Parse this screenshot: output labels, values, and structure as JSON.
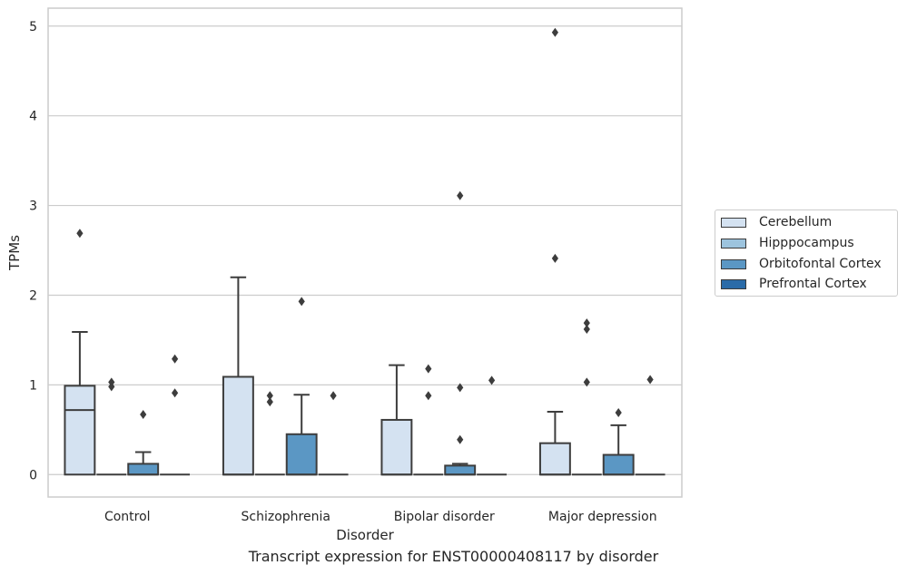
{
  "caption": "Transcript expression for ENST00000408117 by disorder",
  "chart_data": {
    "type": "box",
    "title": "",
    "xlabel": "Disorder",
    "ylabel": "TPMs",
    "ylim": [
      -0.25,
      5.2
    ],
    "yticks": [
      0,
      1,
      2,
      3,
      4,
      5
    ],
    "grid": true,
    "legend_position": "right",
    "categories": [
      "Control",
      "Schizophrenia",
      "Bipolar disorder",
      "Major depression"
    ],
    "series": [
      {
        "name": "Cerebellum",
        "color": "#d4e2f1",
        "boxes": [
          {
            "min": 0,
            "q1": 0,
            "median": 0.72,
            "q3": 0.99,
            "max": 1.59,
            "outliers": [
              2.69
            ]
          },
          {
            "min": 0,
            "q1": 0,
            "median": 0,
            "q3": 1.09,
            "max": 2.2,
            "outliers": []
          },
          {
            "min": 0,
            "q1": 0,
            "median": 0,
            "q3": 0.61,
            "max": 1.22,
            "outliers": []
          },
          {
            "min": 0,
            "q1": 0,
            "median": 0,
            "q3": 0.35,
            "max": 0.7,
            "outliers": [
              2.41,
              4.93
            ]
          }
        ]
      },
      {
        "name": "Hipppocampus",
        "color": "#9dc4de",
        "boxes": [
          {
            "min": 0,
            "q1": 0,
            "median": 0,
            "q3": 0,
            "max": 0,
            "outliers": [
              0.98,
              1.03
            ]
          },
          {
            "min": 0,
            "q1": 0,
            "median": 0,
            "q3": 0,
            "max": 0,
            "outliers": [
              0.81,
              0.88
            ]
          },
          {
            "min": 0,
            "q1": 0,
            "median": 0,
            "q3": 0,
            "max": 0,
            "outliers": [
              0.88,
              1.18
            ]
          },
          {
            "min": 0,
            "q1": 0,
            "median": 0,
            "q3": 0,
            "max": 0,
            "outliers": [
              1.03,
              1.62,
              1.69
            ]
          }
        ]
      },
      {
        "name": "Orbitofontal Cortex",
        "color": "#5b97c4",
        "boxes": [
          {
            "min": 0,
            "q1": 0,
            "median": 0,
            "q3": 0.12,
            "max": 0.25,
            "outliers": [
              0.67
            ]
          },
          {
            "min": 0,
            "q1": 0,
            "median": 0,
            "q3": 0.45,
            "max": 0.89,
            "outliers": [
              1.93
            ]
          },
          {
            "min": 0,
            "q1": 0,
            "median": 0,
            "q3": 0.1,
            "max": 0.12,
            "outliers": [
              0.39,
              0.97,
              3.11
            ]
          },
          {
            "min": 0,
            "q1": 0,
            "median": 0,
            "q3": 0.22,
            "max": 0.55,
            "outliers": [
              0.69
            ]
          }
        ]
      },
      {
        "name": "Prefrontal Cortex",
        "color": "#2a6ba8",
        "boxes": [
          {
            "min": 0,
            "q1": 0,
            "median": 0,
            "q3": 0,
            "max": 0,
            "outliers": [
              0.91,
              1.29
            ]
          },
          {
            "min": 0,
            "q1": 0,
            "median": 0,
            "q3": 0,
            "max": 0,
            "outliers": [
              0.88
            ]
          },
          {
            "min": 0,
            "q1": 0,
            "median": 0,
            "q3": 0,
            "max": 0,
            "outliers": [
              1.05
            ]
          },
          {
            "min": 0,
            "q1": 0,
            "median": 0,
            "q3": 0,
            "max": 0,
            "outliers": [
              1.06
            ]
          }
        ]
      }
    ]
  }
}
